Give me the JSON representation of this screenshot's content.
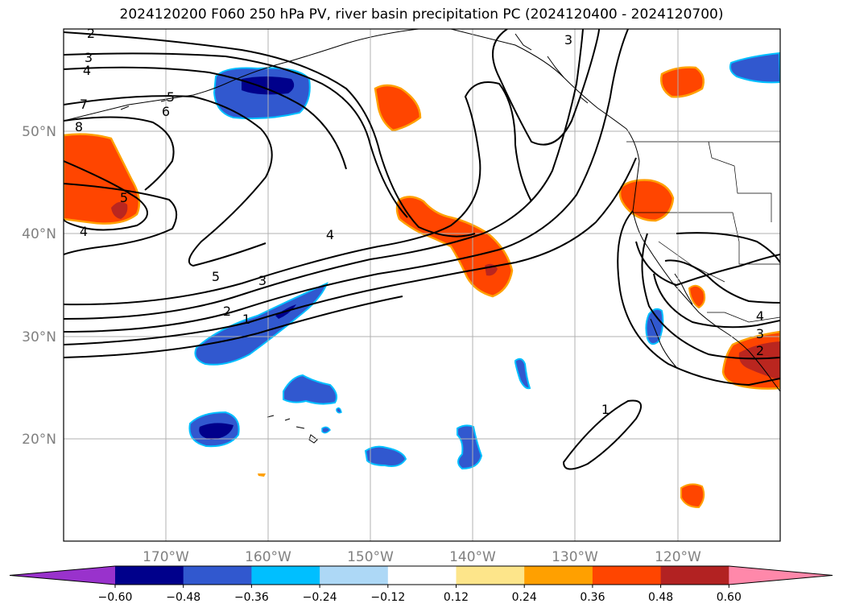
{
  "title": "2024120200 F060 250 hPa PV, river basin precipitation PC (2024120400 - 2024120700)",
  "chart_data": {
    "type": "map",
    "title": "2024120200 F060 250 hPa PV, river basin precipitation PC (2024120400 - 2024120700)",
    "lat_range": [
      10,
      60
    ],
    "lon_range": [
      -180,
      -110
    ],
    "lat_ticks": [
      {
        "v": 20,
        "label": "20°N"
      },
      {
        "v": 30,
        "label": "30°N"
      },
      {
        "v": 40,
        "label": "40°N"
      },
      {
        "v": 50,
        "label": "50°N"
      }
    ],
    "lon_ticks": [
      {
        "v": -170,
        "label": "170°W"
      },
      {
        "v": -160,
        "label": "160°W"
      },
      {
        "v": -150,
        "label": "150°W"
      },
      {
        "v": -140,
        "label": "140°W"
      },
      {
        "v": -130,
        "label": "130°W"
      },
      {
        "v": -120,
        "label": "120°W"
      }
    ],
    "grid": true,
    "pv_contour_labels": [
      "2",
      "3",
      "4",
      "7",
      "5",
      "6",
      "8",
      "5",
      "4",
      "4",
      "5",
      "3",
      "2",
      "1",
      "3",
      "1",
      "4",
      "3",
      "2"
    ],
    "colorbar": {
      "ticks": [
        "−0.60",
        "−0.48",
        "−0.36",
        "−0.24",
        "−0.12",
        "0.12",
        "0.24",
        "0.36",
        "0.48",
        "0.60"
      ],
      "colors": [
        "#9932cc",
        "#00008b",
        "#3158cf",
        "#00bfff",
        "#add8f6",
        "#ffffff",
        "#fde58a",
        "#ffa000",
        "#ff4500",
        "#b22222",
        "#ff88aa"
      ]
    }
  }
}
